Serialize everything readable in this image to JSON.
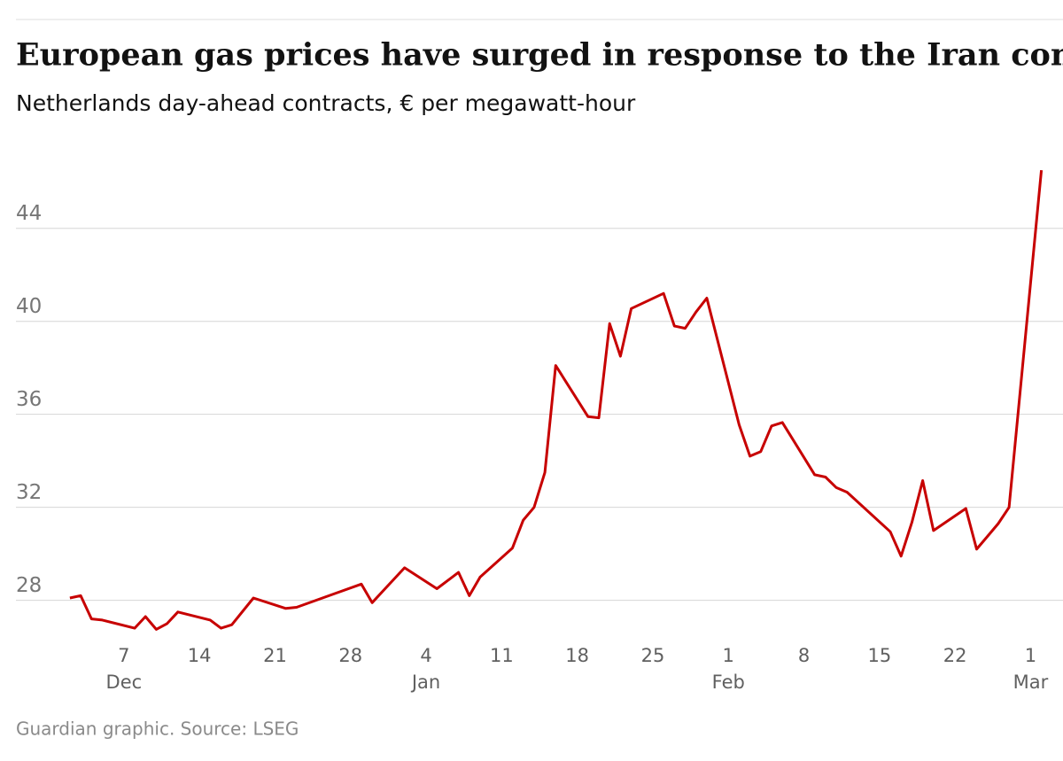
{
  "chart_data": {
    "type": "line",
    "title": "European gas prices have surged in response to the Iran conflict",
    "subtitle": "Netherlands day-ahead contracts, € per megawatt-hour",
    "source": "Guardian graphic. Source: LSEG",
    "x": [
      "Dec 2",
      "Dec 3",
      "Dec 4",
      "Dec 5",
      "Dec 8",
      "Dec 9",
      "Dec 10",
      "Dec 11",
      "Dec 12",
      "Dec 15",
      "Dec 16",
      "Dec 17",
      "Dec 19",
      "Dec 22",
      "Dec 23",
      "Dec 29",
      "Dec 30",
      "Dec 31",
      "Jan 2",
      "Jan 5",
      "Jan 6",
      "Jan 7",
      "Jan 8",
      "Jan 9",
      "Jan 12",
      "Jan 13",
      "Jan 14",
      "Jan 15",
      "Jan 16",
      "Jan 19",
      "Jan 20",
      "Jan 21",
      "Jan 22",
      "Jan 23",
      "Jan 26",
      "Jan 27",
      "Jan 28",
      "Jan 29",
      "Jan 30",
      "Feb 2",
      "Feb 3",
      "Feb 4",
      "Feb 5",
      "Feb 6",
      "Feb 9",
      "Feb 10",
      "Feb 11",
      "Feb 12",
      "Feb 16",
      "Feb 17",
      "Feb 18",
      "Feb 19",
      "Feb 20",
      "Feb 23",
      "Feb 24",
      "Feb 25",
      "Feb 26",
      "Feb 27",
      "Mar 2"
    ],
    "series": [
      {
        "name": "Netherlands day-ahead",
        "color": "#c70000",
        "values": [
          28.1,
          28.2,
          27.2,
          27.15,
          26.8,
          27.3,
          26.75,
          27.0,
          27.5,
          27.15,
          26.8,
          26.95,
          28.1,
          27.65,
          27.7,
          28.7,
          27.9,
          28.4,
          29.4,
          28.5,
          28.85,
          29.2,
          28.2,
          29.0,
          30.25,
          31.45,
          32.0,
          33.5,
          38.1,
          35.9,
          35.85,
          39.9,
          38.5,
          40.55,
          41.2,
          39.8,
          39.7,
          40.4,
          41.0,
          35.55,
          34.2,
          34.4,
          35.5,
          35.65,
          33.4,
          33.3,
          32.85,
          32.65,
          30.95,
          29.9,
          31.35,
          33.15,
          31.0,
          31.95,
          30.2,
          30.75,
          31.3,
          32.0,
          46.5
        ]
      }
    ],
    "xlim": [
      "Nov 27",
      "Mar 4"
    ],
    "xticks": [
      {
        "value": "Dec 7",
        "label": "7"
      },
      {
        "value": "Dec 14",
        "label": "14"
      },
      {
        "value": "Dec 21",
        "label": "21"
      },
      {
        "value": "Dec 28",
        "label": "28"
      },
      {
        "value": "Jan 4",
        "label": "4"
      },
      {
        "value": "Jan 11",
        "label": "11"
      },
      {
        "value": "Jan 18",
        "label": "18"
      },
      {
        "value": "Jan 25",
        "label": "25"
      },
      {
        "value": "Feb 1",
        "label": "1"
      },
      {
        "value": "Feb 8",
        "label": "8"
      },
      {
        "value": "Feb 15",
        "label": "15"
      },
      {
        "value": "Feb 22",
        "label": "22"
      },
      {
        "value": "Mar 1",
        "label": "1"
      }
    ],
    "month_ticks": [
      {
        "value": "Dec 7",
        "label": "Dec"
      },
      {
        "value": "Jan 4",
        "label": "Jan"
      },
      {
        "value": "Feb 1",
        "label": "Feb"
      },
      {
        "value": "Mar 1",
        "label": "Mar"
      }
    ],
    "ylim": [
      26.5,
      47
    ],
    "yticks": [
      28,
      32,
      36,
      40,
      44
    ],
    "grid": true
  }
}
